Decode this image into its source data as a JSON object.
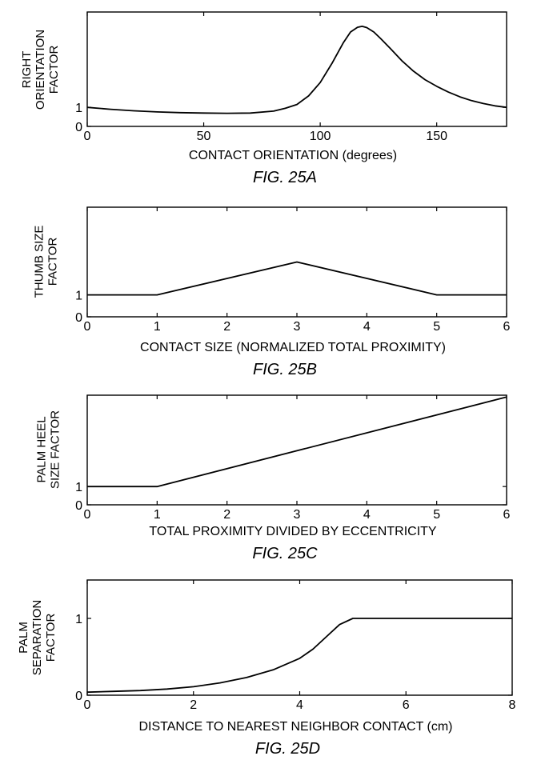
{
  "chart_data": [
    {
      "type": "line",
      "caption": "FIG. 25A",
      "xlabel": "CONTACT ORIENTATION (degrees)",
      "ylabel_lines": [
        "RIGHT",
        "ORIENTATION",
        "FACTOR"
      ],
      "xlim": [
        0,
        180
      ],
      "ylim": [
        0,
        6
      ],
      "xticks": [
        0,
        50,
        100,
        150
      ],
      "yticks": [
        0,
        1
      ],
      "series": [
        {
          "x": [
            0,
            10,
            20,
            30,
            40,
            50,
            60,
            70,
            80,
            85,
            90,
            95,
            100,
            105,
            110,
            113,
            116,
            118,
            120,
            123,
            126,
            130,
            135,
            140,
            145,
            150,
            155,
            160,
            165,
            170,
            175,
            180
          ],
          "y": [
            1.0,
            0.9,
            0.82,
            0.76,
            0.72,
            0.7,
            0.69,
            0.7,
            0.8,
            0.95,
            1.15,
            1.6,
            2.3,
            3.3,
            4.4,
            4.95,
            5.2,
            5.25,
            5.18,
            4.95,
            4.6,
            4.1,
            3.45,
            2.9,
            2.45,
            2.1,
            1.8,
            1.55,
            1.35,
            1.2,
            1.08,
            1.0
          ]
        }
      ]
    },
    {
      "type": "line",
      "caption": "FIG. 25B",
      "xlabel": "CONTACT SIZE (NORMALIZED TOTAL PROXIMITY)",
      "ylabel_lines": [
        "THUMB SIZE",
        "FACTOR"
      ],
      "xlim": [
        0,
        6
      ],
      "ylim": [
        0,
        5
      ],
      "xticks": [
        0,
        1,
        2,
        3,
        4,
        5,
        6
      ],
      "yticks": [
        0,
        1
      ],
      "series": [
        {
          "x": [
            0,
            1,
            3,
            5,
            6
          ],
          "y": [
            1,
            1,
            2.5,
            1,
            1
          ]
        }
      ]
    },
    {
      "type": "line",
      "caption": "FIG. 25C",
      "xlabel": "TOTAL PROXIMITY DIVIDED BY ECCENTRICITY",
      "ylabel_lines": [
        "PALM HEEL",
        "SIZE FACTOR"
      ],
      "xlim": [
        0,
        6
      ],
      "ylim": [
        0,
        6
      ],
      "xticks": [
        0,
        1,
        2,
        3,
        4,
        5,
        6
      ],
      "yticks": [
        0,
        1
      ],
      "series": [
        {
          "x": [
            0,
            1,
            6
          ],
          "y": [
            1,
            1,
            5.9
          ]
        }
      ]
    },
    {
      "type": "line",
      "caption": "FIG. 25D",
      "xlabel": "DISTANCE TO NEAREST NEIGHBOR CONTACT (cm)",
      "ylabel_lines": [
        "PALM",
        "SEPARATION",
        "FACTOR"
      ],
      "xlim": [
        0,
        8
      ],
      "ylim": [
        0,
        1.5
      ],
      "xticks": [
        0,
        2,
        4,
        6,
        8
      ],
      "yticks": [
        0,
        1
      ],
      "series": [
        {
          "x": [
            0,
            0.5,
            1,
            1.5,
            2,
            2.5,
            3,
            3.5,
            4,
            4.25,
            4.5,
            4.75,
            5,
            5.5,
            6,
            6.5,
            7,
            7.5,
            8
          ],
          "y": [
            0.04,
            0.05,
            0.06,
            0.08,
            0.11,
            0.16,
            0.23,
            0.33,
            0.48,
            0.6,
            0.76,
            0.92,
            1.0,
            1.0,
            1.0,
            1.0,
            1.0,
            1.0,
            1.0
          ]
        }
      ]
    }
  ]
}
